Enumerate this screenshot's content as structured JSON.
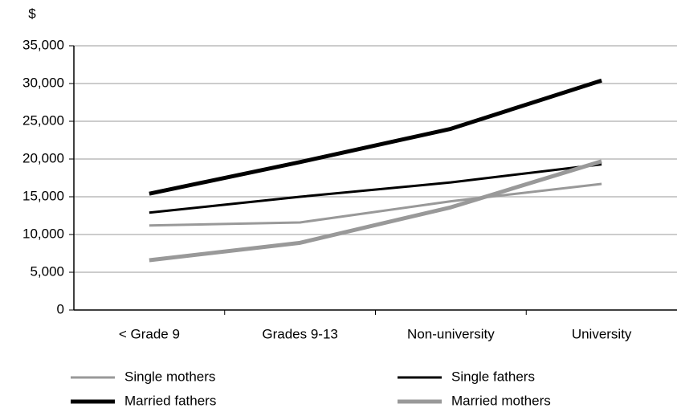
{
  "chart_data": {
    "type": "line",
    "y_label": "$",
    "categories": [
      "< Grade 9",
      "Grades 9-13",
      "Non-university",
      "University"
    ],
    "series": [
      {
        "name": "Single mothers",
        "color": "#999999",
        "width": 3,
        "values": [
          11200,
          11600,
          14400,
          16700
        ]
      },
      {
        "name": "Single fathers",
        "color": "#000000",
        "width": 3,
        "values": [
          12900,
          15000,
          16900,
          19300
        ]
      },
      {
        "name": "Married fathers",
        "color": "#000000",
        "width": 5,
        "values": [
          15400,
          19600,
          24000,
          30400
        ]
      },
      {
        "name": "Married mothers",
        "color": "#999999",
        "width": 5,
        "values": [
          6600,
          8900,
          13600,
          19700
        ]
      }
    ],
    "ylim": [
      0,
      35000
    ],
    "yticks": [
      0,
      {
        "value": 5000,
        "label": "5,000"
      },
      {
        "value": 10000,
        "label": "10,000"
      },
      {
        "value": 15000,
        "label": "15,000"
      },
      {
        "value": 20000,
        "label": "20,000"
      },
      {
        "value": 25000,
        "label": "25,000"
      },
      {
        "value": 30000,
        "label": "30,000"
      },
      {
        "value": 35000,
        "label": "35,000"
      }
    ],
    "grid": true
  }
}
